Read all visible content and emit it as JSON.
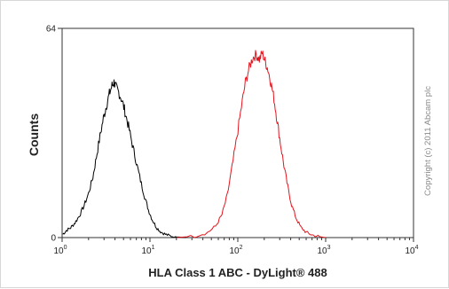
{
  "chart_data": {
    "type": "line",
    "title": "",
    "xlabel": "HLA Class 1 ABC - DyLight® 488",
    "ylabel": "Counts",
    "x_scale": "log",
    "xlim": [
      1,
      10000
    ],
    "ylim": [
      0,
      64
    ],
    "x_ticks": [
      {
        "value": 1,
        "base": "10",
        "exp": "0"
      },
      {
        "value": 10,
        "base": "10",
        "exp": "1"
      },
      {
        "value": 100,
        "base": "10",
        "exp": "2"
      },
      {
        "value": 1000,
        "base": "10",
        "exp": "3"
      },
      {
        "value": 10000,
        "base": "10",
        "exp": "4"
      }
    ],
    "y_ticks": [
      {
        "value": 0,
        "label": "0"
      },
      {
        "value": 64,
        "label": "64"
      }
    ],
    "grid": false,
    "legend": "none",
    "annotation": "Copyright (c) 2011 Abcam plc",
    "series": [
      {
        "color": "#000000",
        "points": [
          [
            1.02,
            1.0
          ],
          [
            1.12,
            2.2
          ],
          [
            1.25,
            3.0
          ],
          [
            1.4,
            4.5
          ],
          [
            1.58,
            6.8
          ],
          [
            1.78,
            9.8
          ],
          [
            2.0,
            13.5
          ],
          [
            2.24,
            18.5
          ],
          [
            2.45,
            24.5
          ],
          [
            2.7,
            31.0
          ],
          [
            2.95,
            36.5
          ],
          [
            3.2,
            40.5
          ],
          [
            3.45,
            44.0
          ],
          [
            3.7,
            46.5
          ],
          [
            3.9,
            47.5
          ],
          [
            4.1,
            46.0
          ],
          [
            4.4,
            44.5
          ],
          [
            4.8,
            42.0
          ],
          [
            5.2,
            38.5
          ],
          [
            5.7,
            34.0
          ],
          [
            6.3,
            28.5
          ],
          [
            7.0,
            23.0
          ],
          [
            7.8,
            17.5
          ],
          [
            8.7,
            12.5
          ],
          [
            9.6,
            8.5
          ],
          [
            10.6,
            5.5
          ],
          [
            11.8,
            3.2
          ],
          [
            13.2,
            1.8
          ],
          [
            15.0,
            1.0
          ],
          [
            17.0,
            0.5
          ],
          [
            20.0,
            0.2
          ],
          [
            26.0,
            0.0
          ]
        ]
      },
      {
        "color": "#e4141e",
        "points": [
          [
            20.0,
            0.0
          ],
          [
            32.0,
            0.4
          ],
          [
            45.0,
            1.5
          ],
          [
            56.0,
            3.5
          ],
          [
            66.0,
            7.0
          ],
          [
            76.0,
            13.0
          ],
          [
            86.0,
            21.5
          ],
          [
            98.0,
            31.0
          ],
          [
            110.0,
            40.0
          ],
          [
            122.0,
            47.5
          ],
          [
            135.0,
            52.0
          ],
          [
            148.0,
            55.0
          ],
          [
            162.0,
            56.0
          ],
          [
            176.0,
            54.5
          ],
          [
            190.0,
            56.5
          ],
          [
            204.0,
            54.0
          ],
          [
            220.0,
            51.5
          ],
          [
            238.0,
            47.5
          ],
          [
            258.0,
            42.5
          ],
          [
            280.0,
            36.0
          ],
          [
            305.0,
            29.0
          ],
          [
            335.0,
            22.0
          ],
          [
            370.0,
            15.5
          ],
          [
            410.0,
            10.0
          ],
          [
            460.0,
            6.0
          ],
          [
            520.0,
            3.2
          ],
          [
            600.0,
            1.6
          ],
          [
            700.0,
            0.8
          ],
          [
            850.0,
            0.3
          ],
          [
            1000.0,
            0.0
          ]
        ]
      }
    ]
  }
}
